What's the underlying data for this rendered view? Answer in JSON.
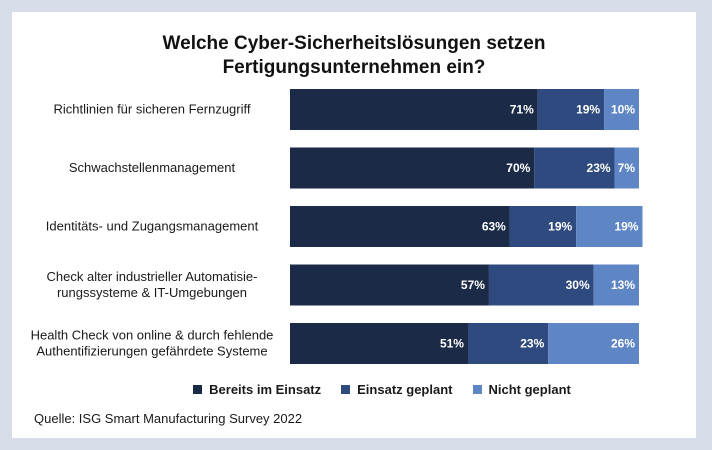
{
  "chart_data": {
    "type": "bar",
    "orientation": "horizontal",
    "stacked": true,
    "title_lines": [
      "Welche Cyber-Sicherheitslösungen setzen",
      "Fertigungsunternehmen ein?"
    ],
    "categories": [
      [
        "Richtlinien für sicheren Fernzugriff"
      ],
      [
        "Schwachstellenmanagement"
      ],
      [
        "Identitäts- und Zugangsmanagement"
      ],
      [
        "Check alter industrieller Automatisie-",
        "rungssysteme & IT-Umgebungen"
      ],
      [
        "Health Check von online & durch fehlende",
        "Authentifizierungen gefährdete Systeme"
      ]
    ],
    "series": [
      {
        "name": "Bereits im Einsatz",
        "color": "#1b2a47",
        "values": [
          71,
          70,
          63,
          57,
          51
        ]
      },
      {
        "name": "Einsatz geplant",
        "color": "#2e4a7e",
        "values": [
          19,
          23,
          19,
          30,
          23
        ]
      },
      {
        "name": "Nicht geplant",
        "color": "#5f86c4",
        "values": [
          10,
          7,
          19,
          13,
          26
        ]
      }
    ],
    "unit": "%",
    "xlim": [
      0,
      100
    ],
    "grid": false,
    "legend_position": "bottom"
  },
  "source": "Quelle: ISG Smart Manufacturing Survey 2022"
}
